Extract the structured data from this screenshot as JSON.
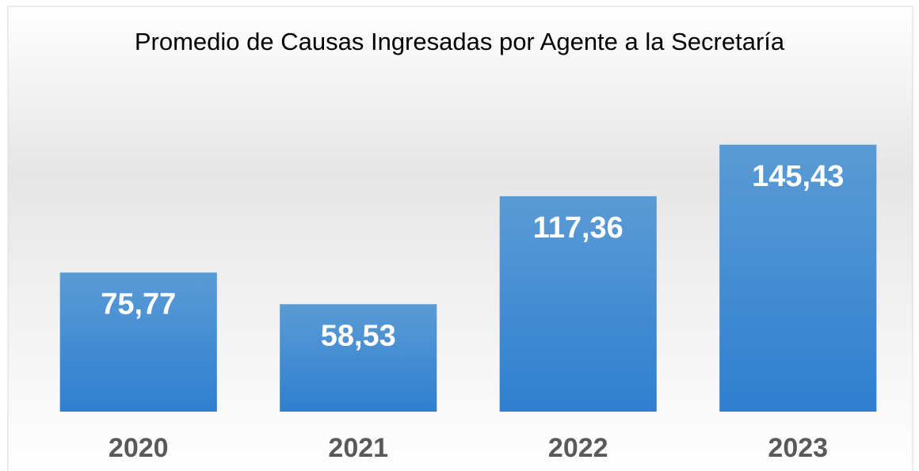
{
  "chart_data": {
    "type": "bar",
    "title": "Promedio de Causas Ingresadas por Agente a la Secretaría",
    "categories": [
      "2020",
      "2021",
      "2022",
      "2023"
    ],
    "values": [
      75.77,
      58.53,
      117.36,
      145.43
    ],
    "value_labels": [
      "75,77",
      "58,53",
      "117,36",
      "145,43"
    ],
    "color": "#4a8fd6",
    "ylim": [
      0,
      160
    ]
  }
}
